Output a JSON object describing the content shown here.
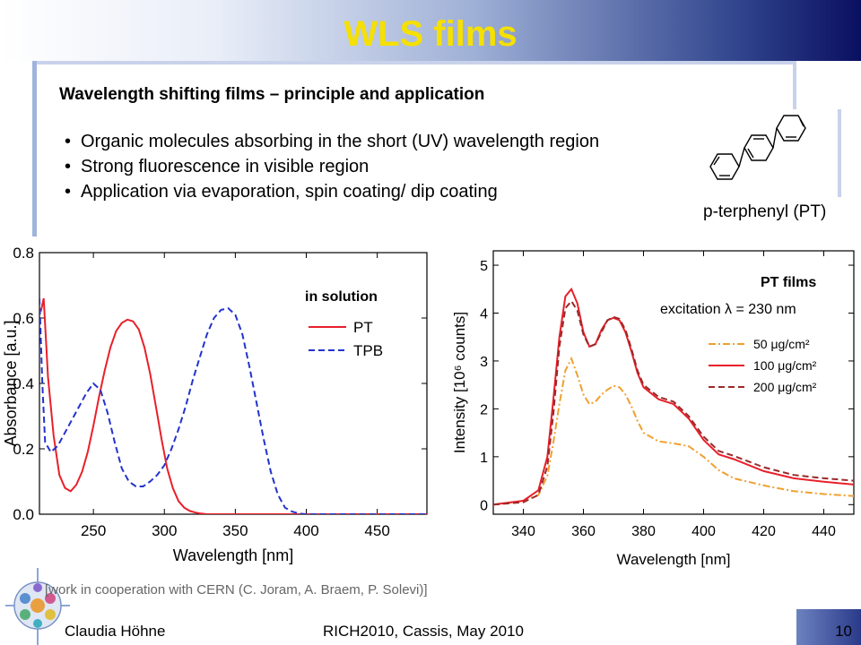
{
  "slide": {
    "title": "WLS films",
    "subtitle": "Wavelength shifting films – principle and application",
    "bullets": [
      "Organic molecules absorbing in the short (UV) wavelength region",
      "Strong fluorescence in visible region",
      "Application via evaporation, spin coating/ dip coating"
    ],
    "molecule_label": "p-terphenyl (PT)",
    "note": "[work in cooperation with CERN (C. Joram, A. Braem, P. Solevi)]",
    "footer_author": "Claudia Höhne",
    "footer_event": "RICH2010, Cassis, May 2010",
    "page_number": "10"
  },
  "chart_data": [
    {
      "type": "line",
      "title": "",
      "xlabel": "Wavelength [nm]",
      "ylabel": "Absorbance [a.u.]",
      "xlim": [
        212,
        485
      ],
      "ylim": [
        0.0,
        0.8
      ],
      "xticks": [
        250,
        300,
        350,
        400,
        450
      ],
      "yticks": [
        0.0,
        0.2,
        0.4,
        0.6,
        0.8
      ],
      "grid": false,
      "legend": {
        "title": "in solution",
        "placement": "top-right"
      },
      "series": [
        {
          "name": "PT",
          "color": "#e8202a",
          "dash": "solid",
          "x": [
            213,
            215,
            218,
            222,
            226,
            230,
            234,
            238,
            242,
            246,
            250,
            254,
            258,
            262,
            266,
            270,
            274,
            278,
            282,
            286,
            290,
            294,
            298,
            302,
            306,
            310,
            314,
            318,
            322,
            326,
            330,
            340,
            360,
            400,
            485
          ],
          "y": [
            0.62,
            0.66,
            0.42,
            0.24,
            0.12,
            0.08,
            0.07,
            0.09,
            0.13,
            0.19,
            0.27,
            0.36,
            0.44,
            0.51,
            0.56,
            0.585,
            0.595,
            0.59,
            0.565,
            0.51,
            0.43,
            0.33,
            0.23,
            0.14,
            0.08,
            0.04,
            0.02,
            0.01,
            0.005,
            0.002,
            0.0,
            0.0,
            0.0,
            0.0,
            0.0
          ]
        },
        {
          "name": "TPB",
          "color": "#2233cc",
          "dash": "dashed",
          "x": [
            212,
            214,
            216,
            220,
            225,
            230,
            235,
            240,
            245,
            250,
            255,
            260,
            265,
            270,
            275,
            280,
            285,
            290,
            295,
            300,
            305,
            310,
            315,
            320,
            325,
            330,
            335,
            340,
            345,
            350,
            355,
            360,
            365,
            370,
            375,
            380,
            385,
            390,
            395,
            400,
            410,
            485
          ],
          "y": [
            0.66,
            0.4,
            0.22,
            0.19,
            0.21,
            0.25,
            0.29,
            0.33,
            0.37,
            0.4,
            0.38,
            0.31,
            0.22,
            0.14,
            0.1,
            0.085,
            0.085,
            0.1,
            0.12,
            0.15,
            0.2,
            0.26,
            0.33,
            0.41,
            0.48,
            0.55,
            0.6,
            0.625,
            0.63,
            0.61,
            0.55,
            0.45,
            0.34,
            0.23,
            0.13,
            0.06,
            0.02,
            0.008,
            0.002,
            0.0,
            0.0,
            0.0
          ]
        }
      ]
    },
    {
      "type": "line",
      "title": "",
      "xlabel": "Wavelength [nm]",
      "ylabel": "Intensity [10⁶ counts]",
      "xlim": [
        330,
        450
      ],
      "ylim": [
        -0.2,
        5.3
      ],
      "xticks": [
        340,
        360,
        380,
        400,
        420,
        440
      ],
      "yticks": [
        0,
        1,
        2,
        3,
        4,
        5
      ],
      "grid": false,
      "annotations": [
        "PT films",
        "excitation λ = 230 nm"
      ],
      "legend": {
        "placement": "right"
      },
      "series": [
        {
          "name": "50 μg/cm²",
          "color": "#f0a030",
          "dash": "dashdot",
          "x": [
            330,
            340,
            345,
            348,
            350,
            352,
            354,
            356,
            358,
            360,
            362,
            364,
            366,
            368,
            370,
            372,
            374,
            376,
            378,
            380,
            385,
            390,
            395,
            400,
            405,
            410,
            420,
            430,
            440,
            450
          ],
          "y": [
            0.0,
            0.08,
            0.2,
            0.6,
            1.3,
            2.1,
            2.8,
            3.05,
            2.7,
            2.3,
            2.1,
            2.15,
            2.3,
            2.4,
            2.48,
            2.45,
            2.3,
            2.05,
            1.75,
            1.5,
            1.32,
            1.28,
            1.22,
            1.0,
            0.72,
            0.55,
            0.4,
            0.28,
            0.22,
            0.18
          ]
        },
        {
          "name": "100 μg/cm²",
          "color": "#e8202a",
          "dash": "solid",
          "x": [
            330,
            340,
            345,
            348,
            350,
            352,
            354,
            356,
            358,
            360,
            362,
            364,
            366,
            368,
            370,
            372,
            374,
            376,
            378,
            380,
            385,
            390,
            395,
            400,
            405,
            410,
            420,
            430,
            440,
            450
          ],
          "y": [
            0.0,
            0.08,
            0.3,
            1.0,
            2.2,
            3.5,
            4.35,
            4.5,
            4.2,
            3.6,
            3.3,
            3.35,
            3.65,
            3.85,
            3.9,
            3.85,
            3.6,
            3.2,
            2.75,
            2.45,
            2.2,
            2.1,
            1.8,
            1.35,
            1.05,
            0.95,
            0.7,
            0.55,
            0.48,
            0.42
          ]
        },
        {
          "name": "200 μg/cm²",
          "color": "#9a2a2a",
          "dash": "dashed",
          "x": [
            330,
            340,
            345,
            348,
            350,
            352,
            354,
            356,
            358,
            360,
            362,
            364,
            366,
            368,
            370,
            372,
            374,
            376,
            378,
            380,
            385,
            390,
            395,
            400,
            405,
            410,
            420,
            430,
            440,
            450
          ],
          "y": [
            0.0,
            0.05,
            0.2,
            0.8,
            1.9,
            3.3,
            4.1,
            4.25,
            4.05,
            3.55,
            3.3,
            3.35,
            3.6,
            3.85,
            3.92,
            3.88,
            3.65,
            3.25,
            2.8,
            2.5,
            2.25,
            2.15,
            1.85,
            1.42,
            1.12,
            1.02,
            0.78,
            0.62,
            0.55,
            0.5
          ]
        }
      ]
    }
  ]
}
